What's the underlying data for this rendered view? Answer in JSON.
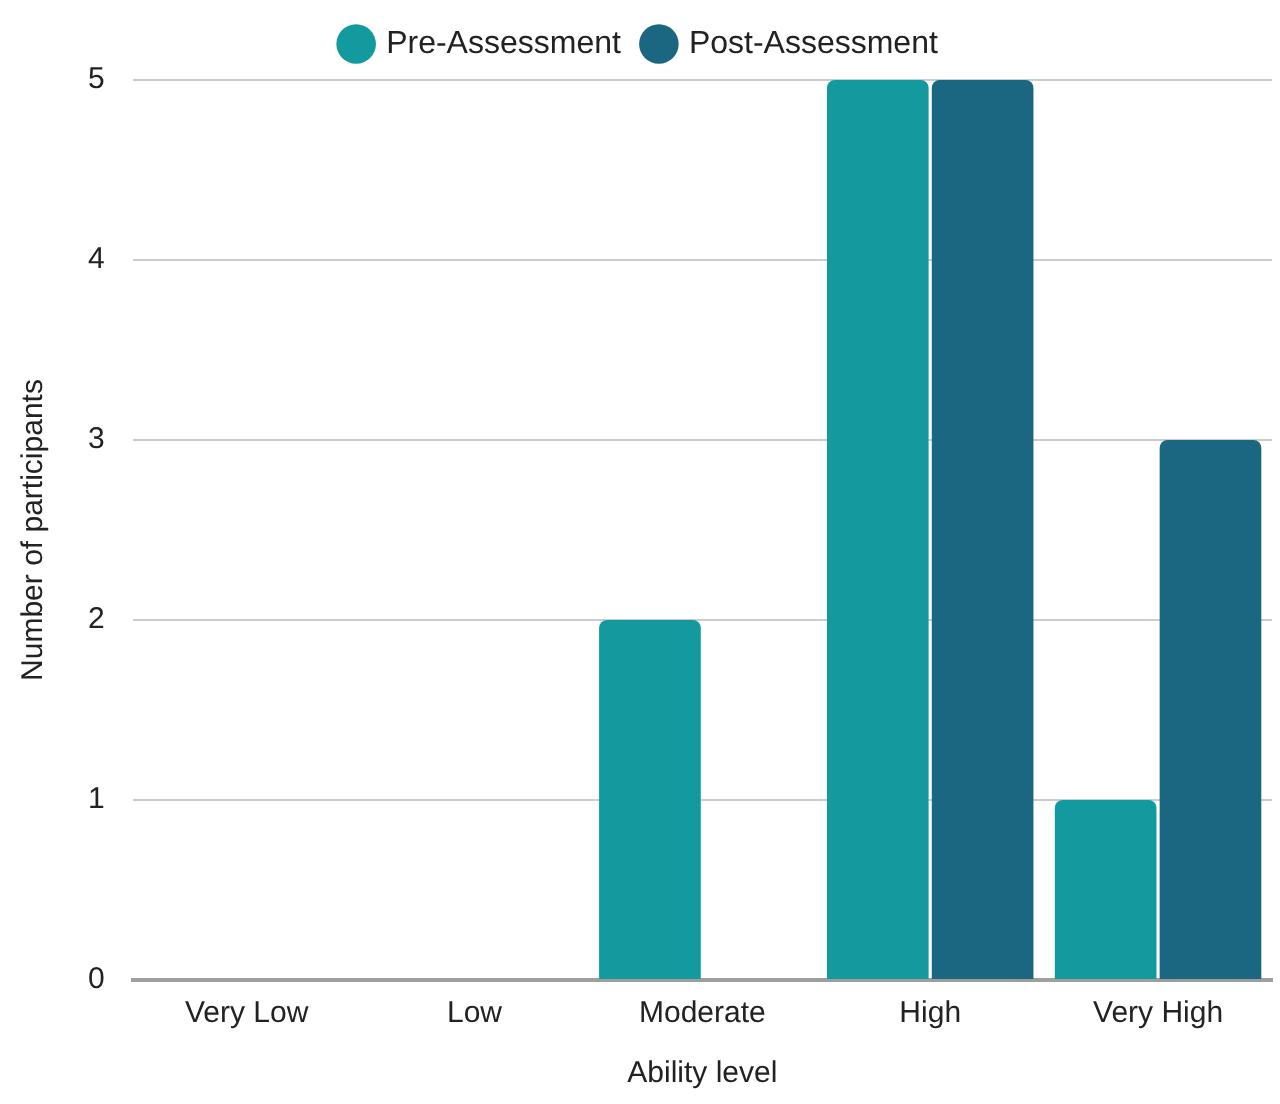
{
  "chart_data": {
    "type": "bar",
    "categories": [
      "Very Low",
      "Low",
      "Moderate",
      "High",
      "Very High"
    ],
    "series": [
      {
        "name": "Pre-Assessment",
        "color": "#129a9f",
        "values": [
          0,
          0,
          2,
          5,
          1
        ]
      },
      {
        "name": "Post-Assessment",
        "color": "#1b6680",
        "values": [
          0,
          0,
          0,
          5,
          3
        ]
      }
    ],
    "xlabel": "Ability level",
    "ylabel": "Number of participants",
    "ylim": [
      0,
      5
    ],
    "yticks": [
      0,
      1,
      2,
      3,
      4,
      5
    ],
    "grid": "y",
    "legend": "top"
  }
}
